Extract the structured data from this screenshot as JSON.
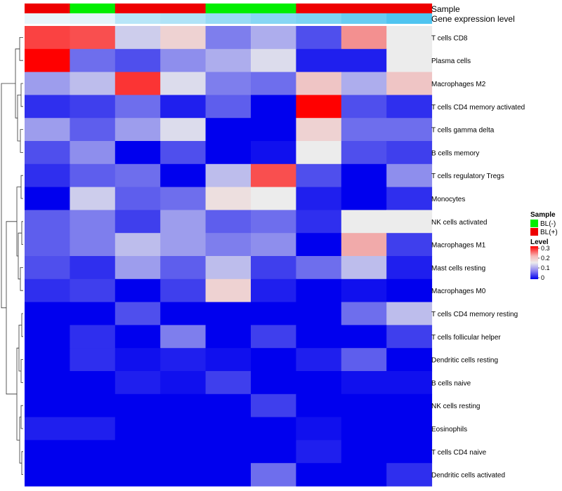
{
  "chart_data": {
    "type": "heatmap",
    "annotation_tracks": {
      "sample": {
        "label": "Sample",
        "values": [
          "BL(+)",
          "BL(-)",
          "BL(+)",
          "BL(+)",
          "BL(-)",
          "BL(-)",
          "BL(+)",
          "BL(+)",
          "BL(+)"
        ]
      },
      "gene_expression": {
        "label": "Gene expression level",
        "values": [
          0.05,
          0.08,
          0.35,
          0.4,
          0.55,
          0.65,
          0.72,
          0.85,
          1.0
        ]
      }
    },
    "rows": [
      "T cells CD8",
      "Plasma cells",
      "Macrophages M2",
      "T cells CD4 memory activated",
      "T cells gamma delta",
      "B cells memory",
      "T cells regulatory  Tregs",
      "Monocytes",
      "NK cells activated",
      "Macrophages M1",
      "Mast cells resting",
      "Macrophages M0",
      "T cells CD4 memory resting",
      "T cells follicular helper",
      "Dendritic cells resting",
      "B cells naive",
      "NK cells resting",
      "Eosinophils",
      "T cells CD4 naive",
      "Dendritic cells activated"
    ],
    "values": [
      [
        0.28,
        0.27,
        0.13,
        0.17,
        0.08,
        0.11,
        0.05,
        0.22,
        0.15
      ],
      [
        0.33,
        0.07,
        0.05,
        0.09,
        0.11,
        0.14,
        0.02,
        0.02,
        0.15
      ],
      [
        0.1,
        0.12,
        0.29,
        0.14,
        0.08,
        0.07,
        0.18,
        0.11,
        0.18
      ],
      [
        0.03,
        0.04,
        0.07,
        0.02,
        0.06,
        0.0,
        0.33,
        0.05,
        0.03
      ],
      [
        0.1,
        0.06,
        0.1,
        0.14,
        0.0,
        0.0,
        0.17,
        0.07,
        0.07
      ],
      [
        0.05,
        0.09,
        0.0,
        0.05,
        0.0,
        0.01,
        0.15,
        0.05,
        0.04
      ],
      [
        0.03,
        0.06,
        0.07,
        0.0,
        0.12,
        0.27,
        0.05,
        0.0,
        0.09
      ],
      [
        0.0,
        0.13,
        0.06,
        0.07,
        0.16,
        0.15,
        0.02,
        0.0,
        0.03
      ],
      [
        0.06,
        0.08,
        0.04,
        0.1,
        0.06,
        0.07,
        0.03,
        0.15,
        0.15
      ],
      [
        0.06,
        0.08,
        0.12,
        0.1,
        0.08,
        0.09,
        0.0,
        0.2,
        0.04
      ],
      [
        0.05,
        0.03,
        0.1,
        0.06,
        0.12,
        0.04,
        0.07,
        0.12,
        0.02
      ],
      [
        0.03,
        0.04,
        0.0,
        0.04,
        0.17,
        0.02,
        0.0,
        0.01,
        0.0
      ],
      [
        0.0,
        0.0,
        0.05,
        0.0,
        0.0,
        0.0,
        0.0,
        0.07,
        0.12
      ],
      [
        0.0,
        0.03,
        0.0,
        0.08,
        0.0,
        0.04,
        0.0,
        0.0,
        0.04
      ],
      [
        0.0,
        0.03,
        0.01,
        0.02,
        0.01,
        0.0,
        0.02,
        0.06,
        0.0
      ],
      [
        0.0,
        0.0,
        0.02,
        0.01,
        0.04,
        0.0,
        0.0,
        0.01,
        0.01
      ],
      [
        0.0,
        0.0,
        0.0,
        0.0,
        0.0,
        0.04,
        0.0,
        0.0,
        0.0
      ],
      [
        0.02,
        0.02,
        0.0,
        0.0,
        0.0,
        0.0,
        0.01,
        0.0,
        0.0
      ],
      [
        0.0,
        0.0,
        0.0,
        0.0,
        0.0,
        0.0,
        0.02,
        0.0,
        0.0
      ],
      [
        0.0,
        0.0,
        0.0,
        0.0,
        0.0,
        0.07,
        0.0,
        0.0,
        0.03
      ]
    ],
    "color_scale": {
      "low": "#0000ee",
      "mid": "#ececec",
      "high": "#ff0000",
      "min": 0,
      "mid_value": 0.15,
      "max": 0.33
    },
    "legend": {
      "sample_title": "Sample",
      "sample_entries": [
        {
          "label": "BL(-)",
          "color": "#00ee00"
        },
        {
          "label": "BL(+)",
          "color": "#ee0000"
        }
      ],
      "level_title": "Level",
      "level_ticks": [
        "0.3",
        "0.2",
        "0.1",
        "0"
      ],
      "placement": "right"
    },
    "colors": {
      "bl_minus": "#00ee00",
      "bl_plus": "#ee0000",
      "expr_low": "#f0f8fc",
      "expr_high": "#4fc4f0"
    }
  }
}
